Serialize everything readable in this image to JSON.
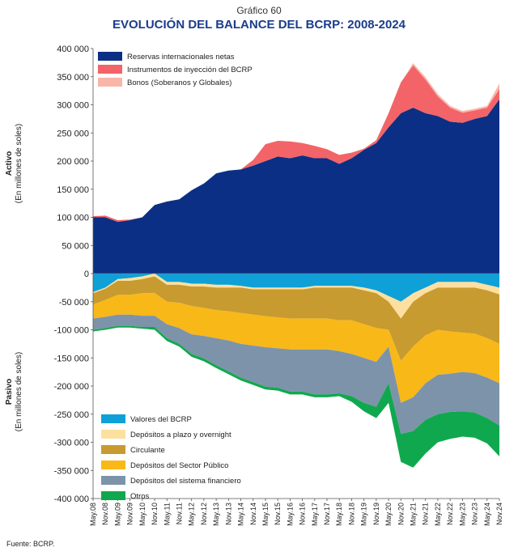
{
  "header": {
    "chart_number": "Gráfico 60",
    "title": "EVOLUCIÓN DEL BALANCE DEL BCRP: 2008-2024"
  },
  "footer": {
    "source": "Fuente: BCRP."
  },
  "chart_data": {
    "type": "area",
    "title": "EVOLUCIÓN DEL BALANCE DEL BCRP: 2008-2024",
    "ylabel_top": "Activo",
    "ylabel_top_sub": "(En millones de soles)",
    "ylabel_bottom": "Pasivo",
    "ylabel_bottom_sub": "(En millones de soles)",
    "ylim": [
      -400000,
      400000
    ],
    "yticks": [
      400000,
      350000,
      300000,
      250000,
      200000,
      150000,
      100000,
      50000,
      0,
      -50000,
      -100000,
      -150000,
      -200000,
      -250000,
      -300000,
      -350000,
      -400000
    ],
    "ytick_labels": [
      "400 000",
      "350 000",
      "300 000",
      "250 000",
      "200 000",
      "150 000",
      "100 000",
      "50 000",
      "0",
      "-50 000",
      "-100 000",
      "-150 000",
      "-200 000",
      "-250 000",
      "-300 000",
      "-350 000",
      "-400 000"
    ],
    "x": [
      "May.08",
      "Nov.08",
      "May.09",
      "Nov.09",
      "May.10",
      "Nov.10",
      "May.11",
      "Nov.11",
      "May.12",
      "Nov.12",
      "May.13",
      "Nov.13",
      "May.14",
      "Nov.14",
      "May.15",
      "Nov.15",
      "May.16",
      "Nov.16",
      "May.17",
      "Nov.17",
      "May.18",
      "Nov.18",
      "May.19",
      "Nov.19",
      "May.20",
      "Nov.20",
      "May.21",
      "Nov.21",
      "May.22",
      "Nov.22",
      "May.23",
      "Nov.23",
      "May.24",
      "Nov.24"
    ],
    "asset_series": [
      {
        "name": "Reservas internacionales netas",
        "color": "#0b2f84",
        "values": [
          100000,
          100000,
          92000,
          95000,
          100000,
          122000,
          128000,
          132000,
          148000,
          160000,
          178000,
          183000,
          185000,
          192000,
          200000,
          208000,
          205000,
          210000,
          205000,
          205000,
          195000,
          205000,
          220000,
          232000,
          260000,
          285000,
          295000,
          285000,
          280000,
          270000,
          268000,
          275000,
          280000,
          310000
        ]
      },
      {
        "name": "Instrumentos de inyección del BCRP",
        "color": "#f26467",
        "values": [
          2000,
          3000,
          3000,
          1000,
          0,
          0,
          0,
          0,
          0,
          0,
          0,
          0,
          0,
          10000,
          30000,
          28000,
          30000,
          22000,
          22000,
          16000,
          16000,
          10000,
          2000,
          5000,
          25000,
          55000,
          75000,
          60000,
          35000,
          25000,
          18000,
          15000,
          15000,
          18000
        ]
      },
      {
        "name": "Bonos (Soberanos y Globales)",
        "color": "#f9b6a8",
        "values": [
          0,
          0,
          0,
          0,
          0,
          0,
          0,
          0,
          0,
          0,
          0,
          0,
          0,
          0,
          0,
          0,
          0,
          0,
          0,
          0,
          0,
          0,
          0,
          0,
          0,
          0,
          4000,
          4000,
          4000,
          3000,
          3000,
          3000,
          3000,
          10000
        ]
      }
    ],
    "liability_series": [
      {
        "name": "Valores del BCRP",
        "color": "#0fa0d8",
        "values": [
          33000,
          25000,
          10000,
          8000,
          5000,
          0,
          15000,
          15000,
          18000,
          18000,
          20000,
          20000,
          22000,
          25000,
          25000,
          25000,
          25000,
          25000,
          22000,
          22000,
          22000,
          22000,
          25000,
          30000,
          40000,
          50000,
          35000,
          25000,
          15000,
          15000,
          15000,
          15000,
          20000,
          25000
        ]
      },
      {
        "name": "Depósitos a plazo y overnight",
        "color": "#fde0a0",
        "values": [
          2000,
          2000,
          3000,
          5000,
          5000,
          5000,
          5000,
          5000,
          5000,
          5000,
          5000,
          5000,
          3000,
          3000,
          3000,
          3000,
          3000,
          3000,
          3000,
          3000,
          3000,
          3000,
          5000,
          5000,
          10000,
          30000,
          15000,
          10000,
          10000,
          10000,
          10000,
          10000,
          10000,
          12000
        ]
      },
      {
        "name": "Circulante",
        "color": "#c89b30",
        "values": [
          20000,
          20000,
          25000,
          25000,
          25000,
          30000,
          30000,
          32000,
          35000,
          38000,
          40000,
          42000,
          45000,
          45000,
          48000,
          50000,
          52000,
          52000,
          55000,
          55000,
          58000,
          58000,
          60000,
          62000,
          50000,
          75000,
          80000,
          75000,
          75000,
          78000,
          80000,
          82000,
          85000,
          88000
        ]
      },
      {
        "name": "Depósitos del Sector Público",
        "color": "#f8b818",
        "values": [
          25000,
          30000,
          35000,
          35000,
          40000,
          40000,
          40000,
          45000,
          50000,
          50000,
          50000,
          52000,
          55000,
          55000,
          55000,
          55000,
          55000,
          55000,
          55000,
          55000,
          55000,
          60000,
          60000,
          60000,
          30000,
          75000,
          90000,
          85000,
          80000,
          75000,
          70000,
          70000,
          70000,
          70000
        ]
      },
      {
        "name": "Depósitos del sistema financiero",
        "color": "#7d93aa",
        "values": [
          20000,
          20000,
          20000,
          20000,
          20000,
          20000,
          25000,
          28000,
          35000,
          40000,
          48000,
          55000,
          60000,
          65000,
          70000,
          70000,
          75000,
          75000,
          80000,
          80000,
          75000,
          75000,
          80000,
          80000,
          65000,
          55000,
          60000,
          65000,
          70000,
          68000,
          70000,
          70000,
          72000,
          75000
        ]
      },
      {
        "name": "Otros",
        "color": "#10a84e",
        "values": [
          3000,
          3000,
          3000,
          3000,
          3000,
          5000,
          5000,
          5000,
          5000,
          5000,
          5000,
          5000,
          5000,
          5000,
          5000,
          5000,
          5000,
          5000,
          5000,
          5000,
          5000,
          10000,
          15000,
          20000,
          35000,
          50000,
          65000,
          60000,
          50000,
          48000,
          45000,
          45000,
          45000,
          55000
        ]
      }
    ],
    "legend_placement": [
      "top-left",
      "bottom-left"
    ],
    "grid": false
  }
}
